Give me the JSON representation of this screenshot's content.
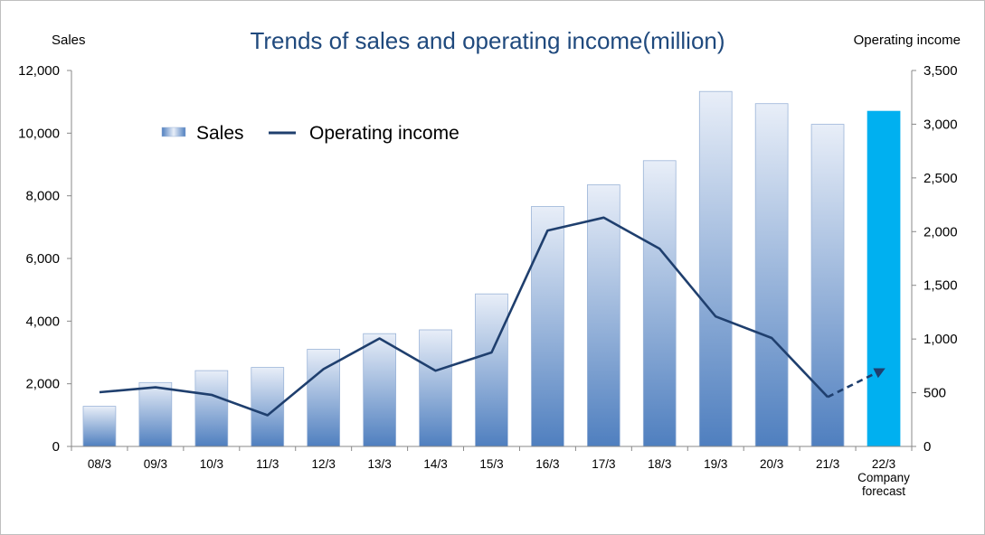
{
  "chart_data": {
    "type": "bar",
    "title": "Trends of sales and operating income(million)",
    "ylabel": "Sales",
    "y2label": "Operating income",
    "categories": [
      "08/3",
      "09/3",
      "10/3",
      "11/3",
      "12/3",
      "13/3",
      "14/3",
      "15/3",
      "16/3",
      "17/3",
      "18/3",
      "19/3",
      "20/3",
      "21/3",
      "22/3"
    ],
    "category_note": "Company forecast",
    "ylim": [
      0,
      12000
    ],
    "yticks": [
      "0",
      "2,000",
      "4,000",
      "6,000",
      "8,000",
      "10,000",
      "12,000"
    ],
    "y2lim": [
      0,
      3500
    ],
    "y2ticks": [
      "0",
      "500",
      "1,000",
      "1,500",
      "2,000",
      "2,500",
      "3,000",
      "3,500"
    ],
    "legend_position": "top-left",
    "grid": false,
    "series": [
      {
        "name": "Sales",
        "type": "bar",
        "axis": "left",
        "values": [
          1280,
          2040,
          2420,
          2520,
          3100,
          3600,
          3720,
          4870,
          7660,
          8350,
          9120,
          11330,
          10940,
          10280,
          10700
        ],
        "forecast_index": 14,
        "color": "#4f81bd",
        "forecast_color": "#00b0f0"
      },
      {
        "name": "Operating income",
        "type": "line",
        "axis": "right",
        "values": [
          505,
          550,
          480,
          290,
          720,
          1005,
          705,
          875,
          2010,
          2130,
          1840,
          1210,
          1010,
          460,
          720
        ],
        "forecast_index": 14,
        "color": "#1f3f6e"
      }
    ]
  }
}
